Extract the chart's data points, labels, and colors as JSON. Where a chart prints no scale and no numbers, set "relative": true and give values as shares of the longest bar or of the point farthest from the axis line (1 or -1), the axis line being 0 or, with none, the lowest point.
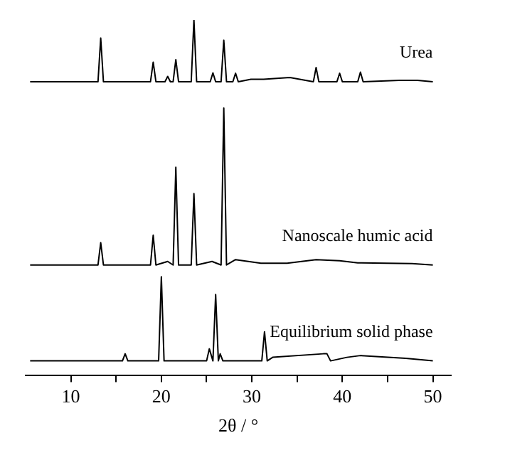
{
  "chart_data": {
    "type": "line",
    "relative": true,
    "xlabel": "2θ / °",
    "xlim": [
      5,
      52
    ],
    "xticks": [
      10,
      {
        "value": 15,
        "label": null
      },
      20,
      {
        "value": 25,
        "label": null
      },
      30,
      {
        "value": 35,
        "label": null
      },
      40,
      {
        "value": 45,
        "label": null
      },
      50
    ],
    "grid": false,
    "legend": false,
    "marker": "none",
    "line_style": "solid",
    "series": [
      {
        "name": "Urea",
        "color": "#000000",
        "x": [
          5.5,
          13.0,
          13.3,
          13.6,
          18.8,
          19.1,
          19.4,
          20.4,
          20.7,
          21.0,
          21.3,
          21.6,
          21.9,
          23.3,
          23.6,
          23.9,
          25.4,
          25.7,
          26.0,
          26.6,
          26.9,
          27.2,
          27.9,
          28.2,
          28.5,
          29.9,
          31.3,
          34.2,
          36.8,
          37.1,
          37.4,
          39.4,
          39.7,
          40.0,
          41.7,
          42.0,
          42.3,
          46.3,
          48.3,
          50.0
        ],
        "values": [
          0.826,
          0.826,
          0.949,
          0.826,
          0.826,
          0.881,
          0.826,
          0.826,
          0.841,
          0.826,
          0.826,
          0.888,
          0.826,
          0.826,
          1.0,
          0.826,
          0.826,
          0.851,
          0.826,
          0.826,
          0.943,
          0.826,
          0.826,
          0.85,
          0.826,
          0.833,
          0.833,
          0.838,
          0.826,
          0.866,
          0.826,
          0.826,
          0.85,
          0.826,
          0.826,
          0.853,
          0.826,
          0.83,
          0.83,
          0.826
        ]
      },
      {
        "name": "Nanoscale humic acid",
        "color": "#000000",
        "x": [
          5.5,
          13.0,
          13.3,
          13.6,
          18.8,
          19.1,
          19.4,
          20.7,
          21.3,
          21.6,
          21.9,
          23.3,
          23.6,
          23.9,
          25.6,
          26.6,
          26.9,
          27.2,
          28.2,
          29.6,
          31.0,
          33.9,
          37.1,
          39.7,
          41.7,
          47.7,
          50.0
        ],
        "values": [
          0.31,
          0.31,
          0.373,
          0.31,
          0.31,
          0.394,
          0.31,
          0.32,
          0.31,
          0.585,
          0.31,
          0.31,
          0.511,
          0.31,
          0.32,
          0.31,
          0.752,
          0.31,
          0.325,
          0.32,
          0.315,
          0.315,
          0.325,
          0.322,
          0.316,
          0.314,
          0.31
        ]
      },
      {
        "name": "Equilibrium solid phase",
        "color": "#000000",
        "x": [
          5.5,
          15.7,
          16.0,
          16.3,
          19.7,
          20.0,
          20.3,
          25.0,
          25.3,
          25.7,
          26.0,
          26.3,
          26.5,
          26.8,
          31.1,
          31.4,
          31.7,
          32.3,
          37.9,
          38.3,
          38.7,
          40.5,
          42.0,
          47.0,
          50.0
        ],
        "values": [
          0.04,
          0.04,
          0.06,
          0.04,
          0.04,
          0.277,
          0.04,
          0.04,
          0.074,
          0.04,
          0.227,
          0.04,
          0.06,
          0.04,
          0.04,
          0.122,
          0.04,
          0.05,
          0.06,
          0.06,
          0.04,
          0.05,
          0.055,
          0.047,
          0.04
        ]
      }
    ]
  }
}
